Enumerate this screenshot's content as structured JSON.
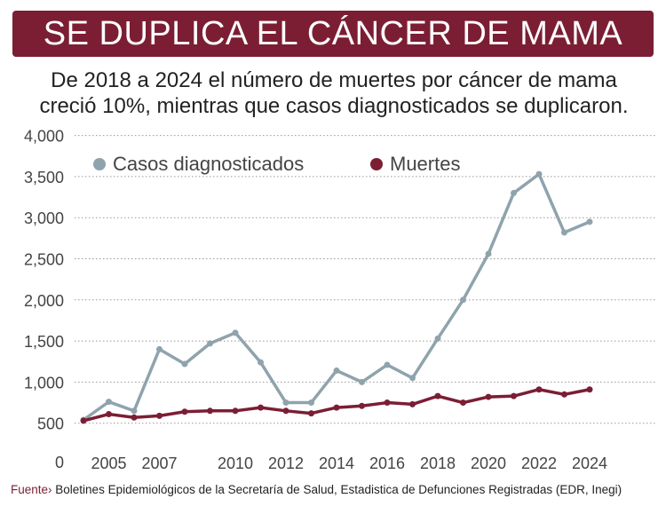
{
  "banner": "SE DUPLICA EL CÁNCER DE MAMA",
  "subtitle_line1": "De 2018 a 2024 el número de muertes por cáncer de mama",
  "subtitle_line2": "creció 10%, mientras que casos diagnosticados se duplicaron.",
  "source_label": "Fuente›",
  "source_text": " Boletines Epidemiológicos de la Secretaría de Salud, Estadistica de Defunciones Registradas (EDR, Inegi)",
  "chart_data": {
    "type": "line",
    "x": [
      2004,
      2005,
      2006,
      2007,
      2008,
      2009,
      2010,
      2011,
      2012,
      2013,
      2014,
      2015,
      2016,
      2017,
      2018,
      2019,
      2020,
      2021,
      2022,
      2023,
      2024
    ],
    "series": [
      {
        "name": "Casos diagnosticados",
        "color": "#8fa3ad",
        "values": [
          540,
          760,
          650,
          1400,
          1220,
          1470,
          1600,
          1240,
          750,
          750,
          1140,
          1000,
          1210,
          1050,
          1530,
          2000,
          2560,
          3300,
          3530,
          2820,
          2950
        ]
      },
      {
        "name": "Muertes",
        "color": "#7b1e34",
        "values": [
          530,
          610,
          570,
          590,
          640,
          650,
          650,
          690,
          650,
          620,
          690,
          710,
          750,
          730,
          830,
          750,
          820,
          830,
          910,
          850,
          910
        ]
      }
    ],
    "ylim": [
      0,
      4000
    ],
    "yticks": [
      "0",
      "500",
      "1,000",
      "1,500",
      "2,000",
      "2,500",
      "3,000",
      "3,500",
      "4,000"
    ],
    "xticks": [
      "2005",
      "2007",
      "2010",
      "2012",
      "2014",
      "2016",
      "2018",
      "2020",
      "2022",
      "2024"
    ],
    "grid": true,
    "legend": "top-left"
  }
}
